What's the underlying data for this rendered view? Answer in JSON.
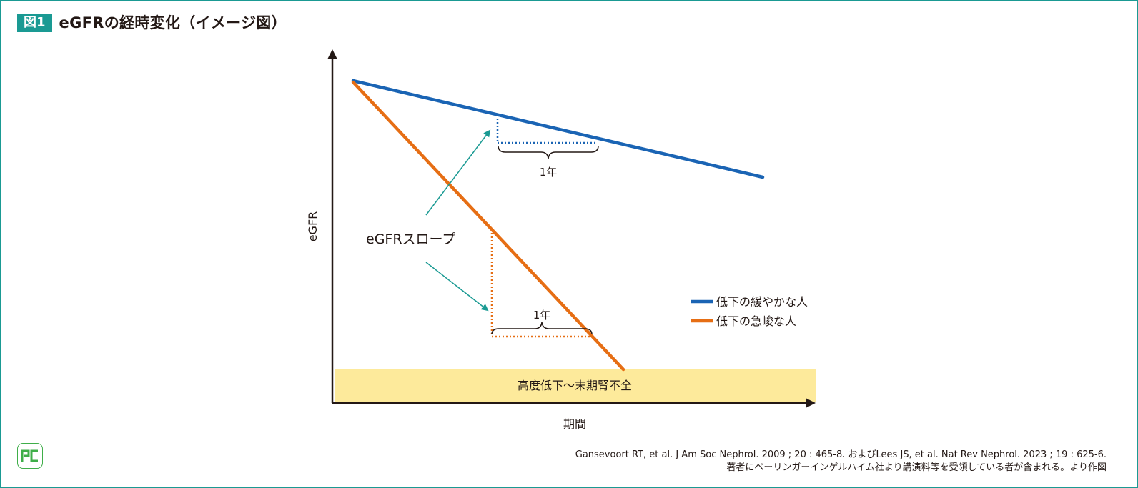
{
  "header": {
    "badge": "図1",
    "title": "eGFRの経時変化（イメージ図）"
  },
  "axes": {
    "y_label": "eGFR",
    "x_label": "期間"
  },
  "zone": {
    "label": "高度低下〜末期腎不全",
    "color": "#fdea9b"
  },
  "annotations": {
    "slope_label": "eGFRスロープ",
    "one_year_blue": "1年",
    "one_year_orange": "1年"
  },
  "legend": {
    "items": [
      {
        "label": "低下の緩やかな人",
        "color": "#1a64b4"
      },
      {
        "label": "低下の急峻な人",
        "color": "#e66e14"
      }
    ]
  },
  "colors": {
    "accent": "#1a9a93",
    "arrow": "#1a9a93",
    "axis": "#231815",
    "logo": "#3fae49"
  },
  "footer": {
    "citation_line1": "Gansevoort RT, et al. J Am Soc Nephrol. 2009 ; 20 : 465-8. およびLees JS, et al. Nat Rev Nephrol. 2023 ; 19 : 625-6.",
    "citation_line2": "著者にベーリンガーインゲルハイム社より講演料等を受領している者が含まれる。より作図",
    "logo_icon": "pc-logo-icon"
  }
}
